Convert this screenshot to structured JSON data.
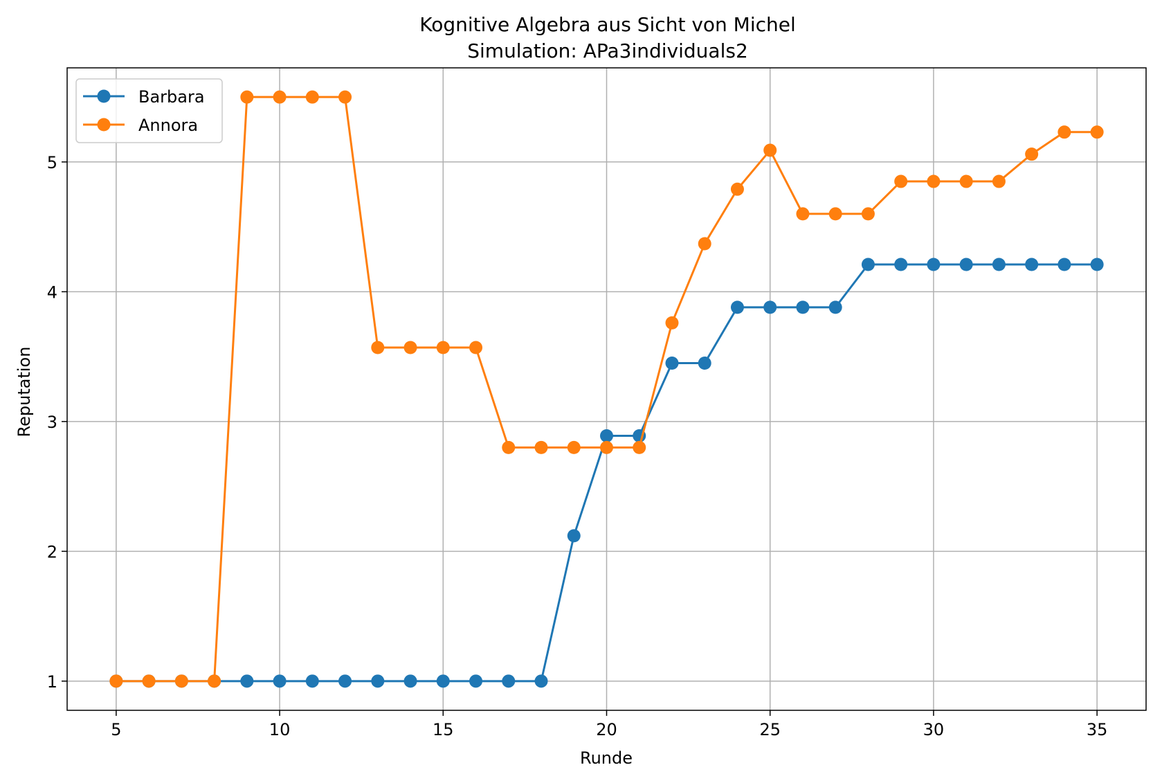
{
  "chart_data": {
    "type": "line",
    "title": "Kognitive Algebra aus Sicht von Michel",
    "subtitle": "Simulation: APa3individuals2",
    "xlabel": "Runde",
    "ylabel": "Reputation",
    "xlim": [
      3.5,
      36.5
    ],
    "ylim": [
      0.775,
      5.725
    ],
    "xticks": [
      5,
      10,
      15,
      20,
      25,
      30,
      35
    ],
    "yticks": [
      1,
      2,
      3,
      4,
      5
    ],
    "grid": true,
    "legend_position": "upper-left",
    "x": [
      5,
      6,
      7,
      8,
      9,
      10,
      11,
      12,
      13,
      14,
      15,
      16,
      17,
      18,
      19,
      20,
      21,
      22,
      23,
      24,
      25,
      26,
      27,
      28,
      29,
      30,
      31,
      32,
      33,
      34,
      35
    ],
    "series": [
      {
        "name": "Barbara",
        "color": "#1f77b4",
        "marker": "circle",
        "values": [
          1,
          1,
          1,
          1,
          1,
          1,
          1,
          1,
          1,
          1,
          1,
          1,
          1,
          1,
          2.12,
          2.89,
          2.89,
          3.45,
          3.45,
          3.88,
          3.88,
          3.88,
          3.88,
          4.21,
          4.21,
          4.21,
          4.21,
          4.21,
          4.21,
          4.21,
          4.21
        ]
      },
      {
        "name": "Annora",
        "color": "#ff7f0e",
        "marker": "circle",
        "values": [
          1,
          1,
          1,
          1,
          5.5,
          5.5,
          5.5,
          5.5,
          3.57,
          3.57,
          3.57,
          3.57,
          2.8,
          2.8,
          2.8,
          2.8,
          2.8,
          3.76,
          4.37,
          4.79,
          5.09,
          4.6,
          4.6,
          4.6,
          4.85,
          4.85,
          4.85,
          4.85,
          5.06,
          5.23,
          5.23
        ]
      }
    ]
  }
}
